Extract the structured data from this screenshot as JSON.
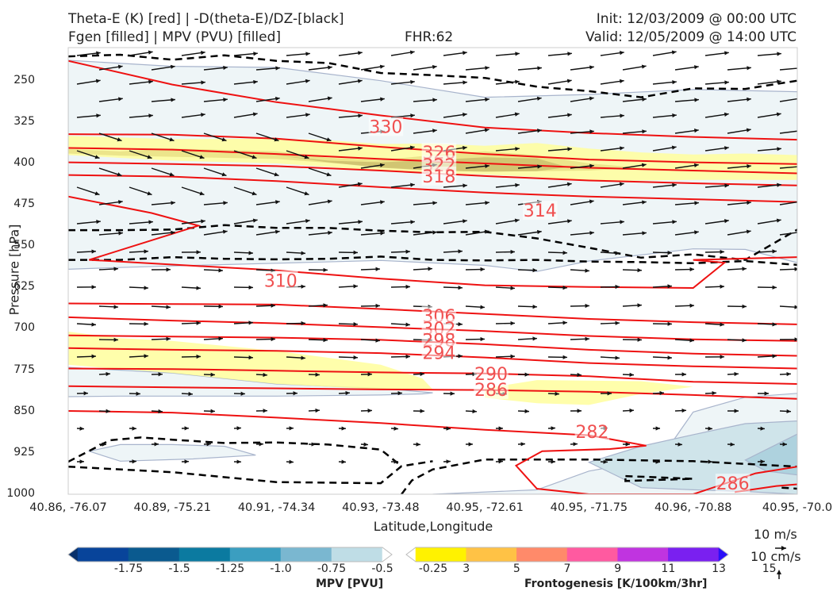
{
  "header": {
    "title_line1": "Theta-E (K) [red] | -D(theta-E)/DZ-[black]",
    "title_line2": "Fgen [filled] | MPV (PVU) [filled]",
    "fhr": "FHR:62",
    "init": "Init: 12/03/2009 @ 00:00 UTC",
    "valid": "Valid: 12/05/2009 @ 14:00 UTC"
  },
  "chart_data": {
    "type": "cross-section",
    "xlabel": "Latitude,Longitude",
    "ylabel": "Pressure [hPa]",
    "x_ticks": [
      "40.86, -76.07",
      "40.89, -75.21",
      "40.91, -74.34",
      "40.93, -73.48",
      "40.95, -72.61",
      "40.95, -71.75",
      "40.96, -70.88",
      "40.95, -70.0"
    ],
    "y_ticks": [
      250,
      325,
      400,
      475,
      550,
      625,
      700,
      775,
      850,
      925,
      1000
    ],
    "ylim": [
      1000,
      190
    ],
    "theta_e_labels": [
      {
        "value": "330",
        "x": 3.05,
        "p": 333
      },
      {
        "value": "326",
        "x": 3.56,
        "p": 380
      },
      {
        "value": "322",
        "x": 3.56,
        "p": 403
      },
      {
        "value": "318",
        "x": 3.56,
        "p": 423
      },
      {
        "value": "314",
        "x": 4.53,
        "p": 485
      },
      {
        "value": "310",
        "x": 2.04,
        "p": 612
      },
      {
        "value": "306",
        "x": 3.56,
        "p": 676
      },
      {
        "value": "302",
        "x": 3.56,
        "p": 699
      },
      {
        "value": "298",
        "x": 3.56,
        "p": 720
      },
      {
        "value": "294",
        "x": 3.56,
        "p": 743
      },
      {
        "value": "290",
        "x": 4.06,
        "p": 781
      },
      {
        "value": "286",
        "x": 4.06,
        "p": 810
      },
      {
        "value": "282",
        "x": 5.03,
        "p": 886
      },
      {
        "value": "286",
        "x": 6.38,
        "p": 980
      }
    ],
    "theta_e_lines": [
      {
        "x": [
          0,
          1,
          2,
          3,
          4,
          5,
          6,
          7
        ],
        "p": [
          214,
          257,
          289,
          313,
          335,
          345,
          352,
          357
        ]
      },
      {
        "x": [
          0,
          1,
          2,
          3,
          4,
          5,
          6,
          7
        ],
        "p": [
          347,
          348,
          355,
          370,
          383,
          393,
          398,
          401
        ]
      },
      {
        "x": [
          0,
          1,
          2,
          3,
          4,
          5,
          6,
          7
        ],
        "p": [
          372,
          375,
          383,
          392,
          400,
          408,
          413,
          418
        ]
      },
      {
        "x": [
          0,
          1,
          2,
          3,
          4,
          5,
          6,
          7
        ],
        "p": [
          398,
          401,
          405,
          413,
          423,
          431,
          436,
          440
        ]
      },
      {
        "x": [
          0,
          1,
          2,
          3,
          4,
          5,
          6,
          7
        ],
        "p": [
          421,
          424,
          432,
          443,
          453,
          460,
          465,
          470
        ]
      },
      {
        "x": [
          0,
          0.8,
          1.25,
          0.2,
          2,
          3,
          4,
          5,
          6,
          6.3,
          6,
          7
        ],
        "p": [
          460,
          490,
          513,
          575,
          594,
          609,
          621,
          624,
          626,
          580,
          575,
          570
        ]
      },
      {
        "x": [
          0,
          1,
          2,
          3,
          4,
          5,
          6,
          7
        ],
        "p": [
          654,
          655,
          656,
          664,
          673,
          682,
          688,
          692
        ]
      },
      {
        "x": [
          0,
          1,
          2,
          3,
          4,
          5,
          6,
          7
        ],
        "p": [
          679,
          685,
          690,
          697,
          704,
          713,
          719,
          722
        ]
      },
      {
        "x": [
          0,
          1,
          2,
          3,
          4,
          5,
          6,
          7
        ],
        "p": [
          712,
          714,
          716,
          720,
          728,
          738,
          745,
          749
        ]
      },
      {
        "x": [
          0,
          1,
          2,
          3,
          4,
          5,
          6,
          7
        ],
        "p": [
          735,
          738,
          740,
          744,
          752,
          762,
          768,
          772
        ]
      },
      {
        "x": [
          0,
          1,
          2,
          3,
          4,
          5,
          6,
          7
        ],
        "p": [
          772,
          773,
          776,
          779,
          781,
          786,
          796,
          800
        ]
      },
      {
        "x": [
          0,
          1,
          2,
          3,
          4,
          5,
          6,
          7
        ],
        "p": [
          804,
          806,
          808,
          810,
          811,
          814,
          820,
          827
        ]
      },
      {
        "x": [
          0,
          1,
          2,
          3,
          4,
          5,
          5.55,
          5.2,
          4.55,
          4.3,
          4.5,
          5,
          6,
          6.6,
          7
        ],
        "p": [
          849,
          852,
          861,
          871,
          883,
          893,
          912,
          918,
          922,
          948,
          990,
          1000,
          1000,
          962,
          950
        ]
      },
      {
        "x": [
          6.4,
          6.8,
          7
        ],
        "p": [
          996,
          985,
          982
        ]
      }
    ],
    "stability_dashed": [
      {
        "x": [
          0,
          0.5,
          1,
          1.5,
          2,
          2.5,
          3,
          3.5,
          4,
          4.5,
          5,
          5.5,
          6,
          6.5,
          7
        ],
        "p": [
          206,
          203,
          212,
          204,
          214,
          218,
          236,
          240,
          245,
          261,
          269,
          280,
          264,
          265,
          250
        ]
      },
      {
        "x": [
          0,
          0.5,
          1,
          1.5,
          2,
          2.5,
          3,
          3.5,
          4,
          4.5,
          5,
          5.5,
          6,
          6.5,
          7
        ],
        "p": [
          521,
          521,
          520,
          512,
          517,
          517,
          522,
          525,
          524,
          536,
          553,
          571,
          565,
          575,
          520
        ]
      },
      {
        "x": [
          0,
          0.5,
          1,
          1.5,
          2,
          2.5,
          3,
          3.5,
          4,
          4.5,
          5,
          5.5,
          6,
          6.5,
          7
        ],
        "p": [
          575,
          575,
          570,
          573,
          574,
          573,
          569,
          575,
          576,
          575,
          578,
          579,
          581,
          577,
          584
        ]
      },
      {
        "x": [
          0,
          0.4,
          0.7,
          1,
          1.5,
          2,
          2.5,
          3,
          3.2
        ],
        "p": [
          941,
          902,
          897,
          901,
          907,
          906,
          910,
          919,
          949
        ]
      },
      {
        "x": [
          0,
          1,
          2,
          3,
          3.2,
          3.5
        ],
        "p": [
          950,
          960,
          978,
          980,
          949,
          940
        ]
      },
      {
        "x": [
          3.2,
          3.3,
          3.3,
          3.5,
          4,
          5,
          6,
          7
        ],
        "p": [
          1000,
          975,
          975,
          955,
          937,
          937,
          940,
          950
        ]
      },
      {
        "x": [
          5.35,
          6.0,
          5.35,
          5.35
        ],
        "p": [
          967,
          972,
          976,
          967
        ]
      },
      {
        "x": [
          6.85,
          7.0
        ],
        "p": [
          988,
          990
        ]
      }
    ],
    "fgen_fill": [
      {
        "level": 3,
        "x": [
          0,
          1,
          2,
          2.5,
          3,
          3.5,
          4,
          4.5,
          5,
          5.5,
          6,
          6.5,
          7,
          7,
          6,
          5,
          4.5,
          4,
          3.5,
          3,
          2,
          1,
          0
        ],
        "p": [
          350,
          356,
          355,
          358,
          365,
          364,
          368,
          363,
          373,
          380,
          384,
          382,
          385,
          430,
          430,
          432,
          425,
          420,
          418,
          413,
          400,
          395,
          385
        ]
      },
      {
        "level": 3,
        "x": [
          0,
          0.5,
          1,
          2,
          3,
          3.4,
          3.5,
          3,
          2,
          1,
          0.3,
          0
        ],
        "p": [
          705,
          717,
          722,
          740,
          765,
          790,
          810,
          810,
          800,
          780,
          770,
          765
        ]
      },
      {
        "level": 3,
        "x": [
          4.0,
          4.5,
          5.5,
          6.0,
          5.5,
          5.0,
          4.5,
          4.0
        ],
        "p": [
          808,
          793,
          795,
          805,
          818,
          838,
          835,
          825
        ]
      },
      {
        "level": 5,
        "x": [
          0,
          0.5,
          1,
          2,
          2.5,
          3,
          3.5,
          4,
          4.5,
          5,
          5.5,
          5,
          4.5,
          4,
          3.5,
          3,
          2,
          1,
          0.5,
          0
        ],
        "p": [
          374,
          378,
          373,
          378,
          390,
          394,
          385,
          378,
          385,
          400,
          408,
          413,
          414,
          415,
          413,
          406,
          392,
          388,
          386,
          382
        ]
      },
      {
        "level": 7,
        "x": [
          2.0,
          2.5,
          3,
          3.5,
          4,
          4.5,
          4.8,
          4.5,
          4,
          3.5,
          3,
          2.5
        ],
        "p": [
          385,
          395,
          398,
          394,
          389,
          391,
          407,
          414,
          415,
          413,
          408,
          398
        ]
      }
    ],
    "mpv_fill": [
      {
        "level": -0.25,
        "x": [
          0,
          1,
          2,
          3,
          4,
          5,
          6,
          7,
          7,
          6.5,
          6,
          5,
          4.5,
          4,
          3,
          2,
          1,
          0.3,
          0
        ],
        "p": [
          213,
          224,
          226,
          250,
          280,
          275,
          266,
          270,
          580,
          556,
          555,
          577,
          596,
          585,
          576,
          581,
          586,
          590,
          592
        ]
      },
      {
        "level": -0.25,
        "x": [
          0,
          1,
          2,
          3,
          3.5,
          3.4,
          3,
          2,
          1,
          0.5,
          0
        ],
        "p": [
          770,
          780,
          800,
          808,
          816,
          818,
          820,
          822,
          822,
          822,
          823
        ]
      },
      {
        "level": -0.25,
        "x": [
          3.5,
          4.5,
          5,
          5.5,
          5.8,
          6,
          6.5,
          7,
          7,
          6,
          5,
          4,
          3.5
        ],
        "p": [
          1000,
          992,
          958,
          941,
          905,
          851,
          824,
          817,
          1000,
          1000,
          1000,
          1000,
          1000
        ]
      },
      {
        "level": -0.25,
        "x": [
          0.2,
          0.5,
          1,
          1.5,
          1.8,
          1.2,
          0.5,
          0.2
        ],
        "p": [
          922,
          910,
          910,
          913,
          929,
          936,
          940,
          922
        ]
      },
      {
        "level": -0.5,
        "x": [
          5.0,
          5.5,
          6,
          6.5,
          7,
          7,
          6.5,
          6,
          5.5
        ],
        "p": [
          942,
          913,
          892,
          872,
          867,
          1000,
          995,
          992,
          988
        ]
      },
      {
        "level": -0.75,
        "x": [
          6.5,
          7,
          7,
          6.7
        ],
        "p": [
          938,
          891,
          965,
          958
        ]
      }
    ],
    "wind_barb_speed_ref": "10 m/s",
    "wind_w_ref": "10 cm/s"
  },
  "colorbars": {
    "mpv": {
      "label": "MPV [PVU]",
      "ticks": [
        "-1.75",
        "-1.5",
        "-1.25",
        "-1.0",
        "-0.75",
        "-0.5",
        "-0.25"
      ],
      "colors": [
        "#08306b",
        "#08449a",
        "#0a5a8f",
        "#0b7aa0",
        "#3b9ec0",
        "#7ab7d0",
        "#bfdde6",
        "#ffffff"
      ]
    },
    "fgen": {
      "label": "Frontogenesis [K/100km/3hr]",
      "ticks": [
        "3",
        "5",
        "7",
        "9",
        "11",
        "13",
        "15"
      ],
      "colors": [
        "#ffffff",
        "#fff200",
        "#ffc245",
        "#ff8a6a",
        "#ff5aa0",
        "#c034e0",
        "#7a20f0",
        "#2a10f8"
      ]
    }
  }
}
